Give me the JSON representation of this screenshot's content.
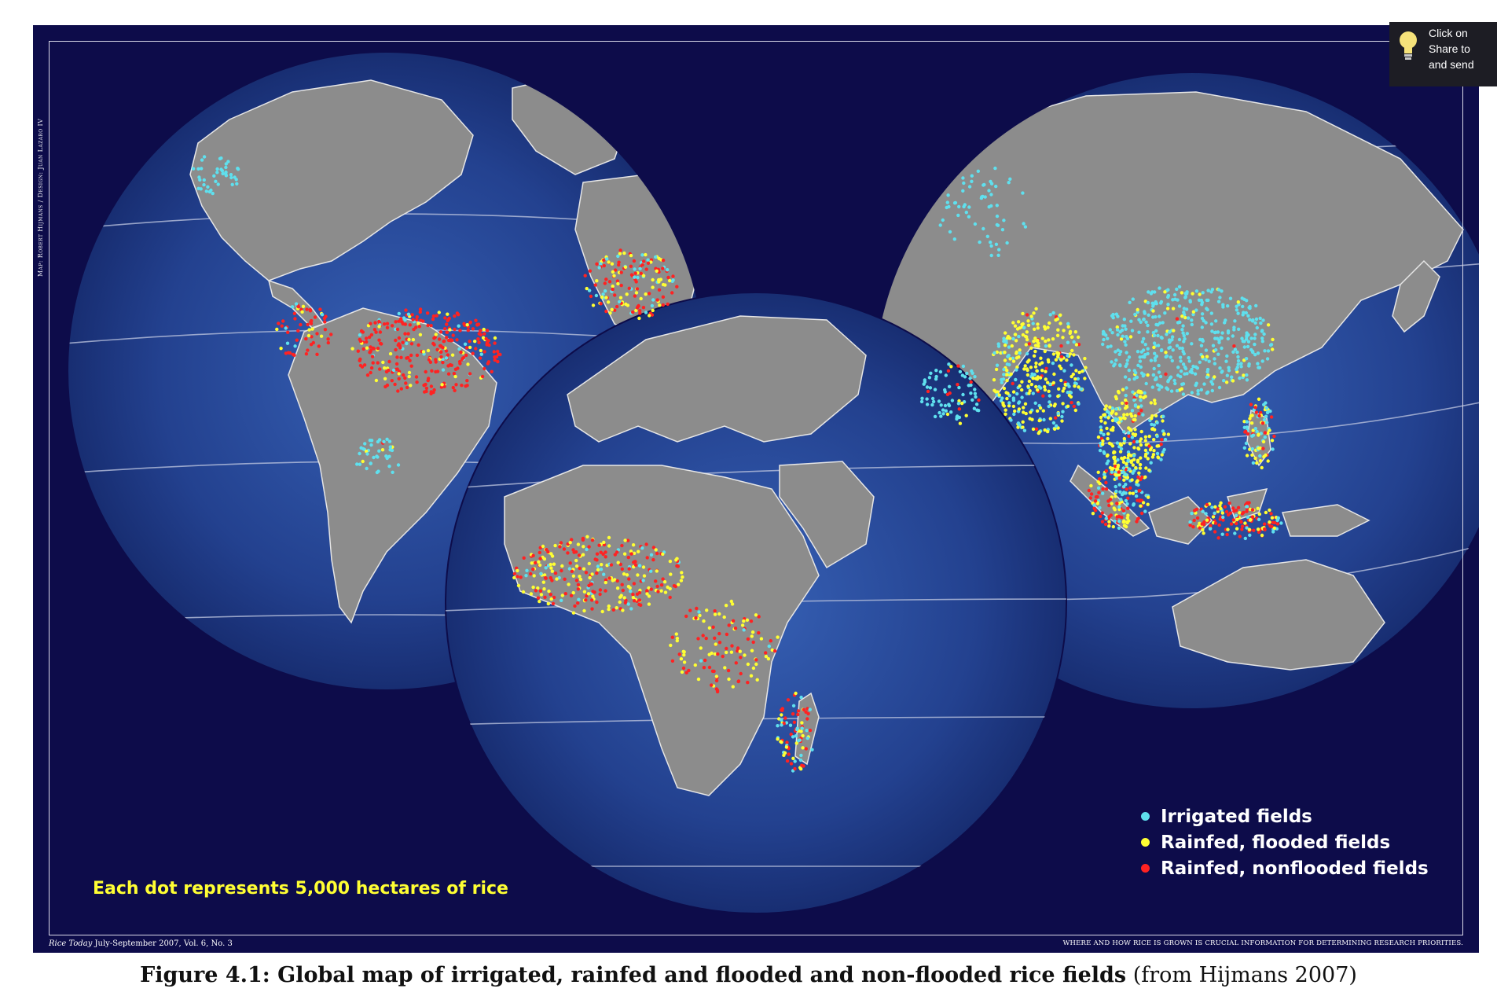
{
  "map": {
    "credit": "Map: Robert Hijmans / Design: Juan Lazaro IV",
    "note": "Each dot represents 5,000 hectares of rice",
    "footer_left_italic": "Rice Today",
    "footer_left": " July-September 2007, Vol. 6, No. 3",
    "footer_right": "WHERE AND HOW RICE IS GROWN IS CRUCIAL INFORMATION FOR DETERMINING RESEARCH PRIORITIES.",
    "legend": [
      {
        "label": "Irrigated fields",
        "color": "#5fe0ee"
      },
      {
        "label": "Rainfed, flooded fields",
        "color": "#ffff33"
      },
      {
        "label": "Rainfed, nonflooded fields",
        "color": "#ff2222"
      }
    ],
    "colors": {
      "ocean_center": "#2f56a8",
      "ocean_edge": "#172c74",
      "land": "#8c8c8c",
      "background": "#0d0c4a"
    }
  },
  "caption": {
    "prefix": "Figure 4.1: ",
    "title": "Global map of irrigated, rainfed and flooded and non-flooded rice fields",
    "source": " (from Hijmans 2007)"
  },
  "tooltip": {
    "icon": "lightbulb-icon",
    "lines": [
      "Click on",
      "Share to",
      "and send"
    ]
  }
}
